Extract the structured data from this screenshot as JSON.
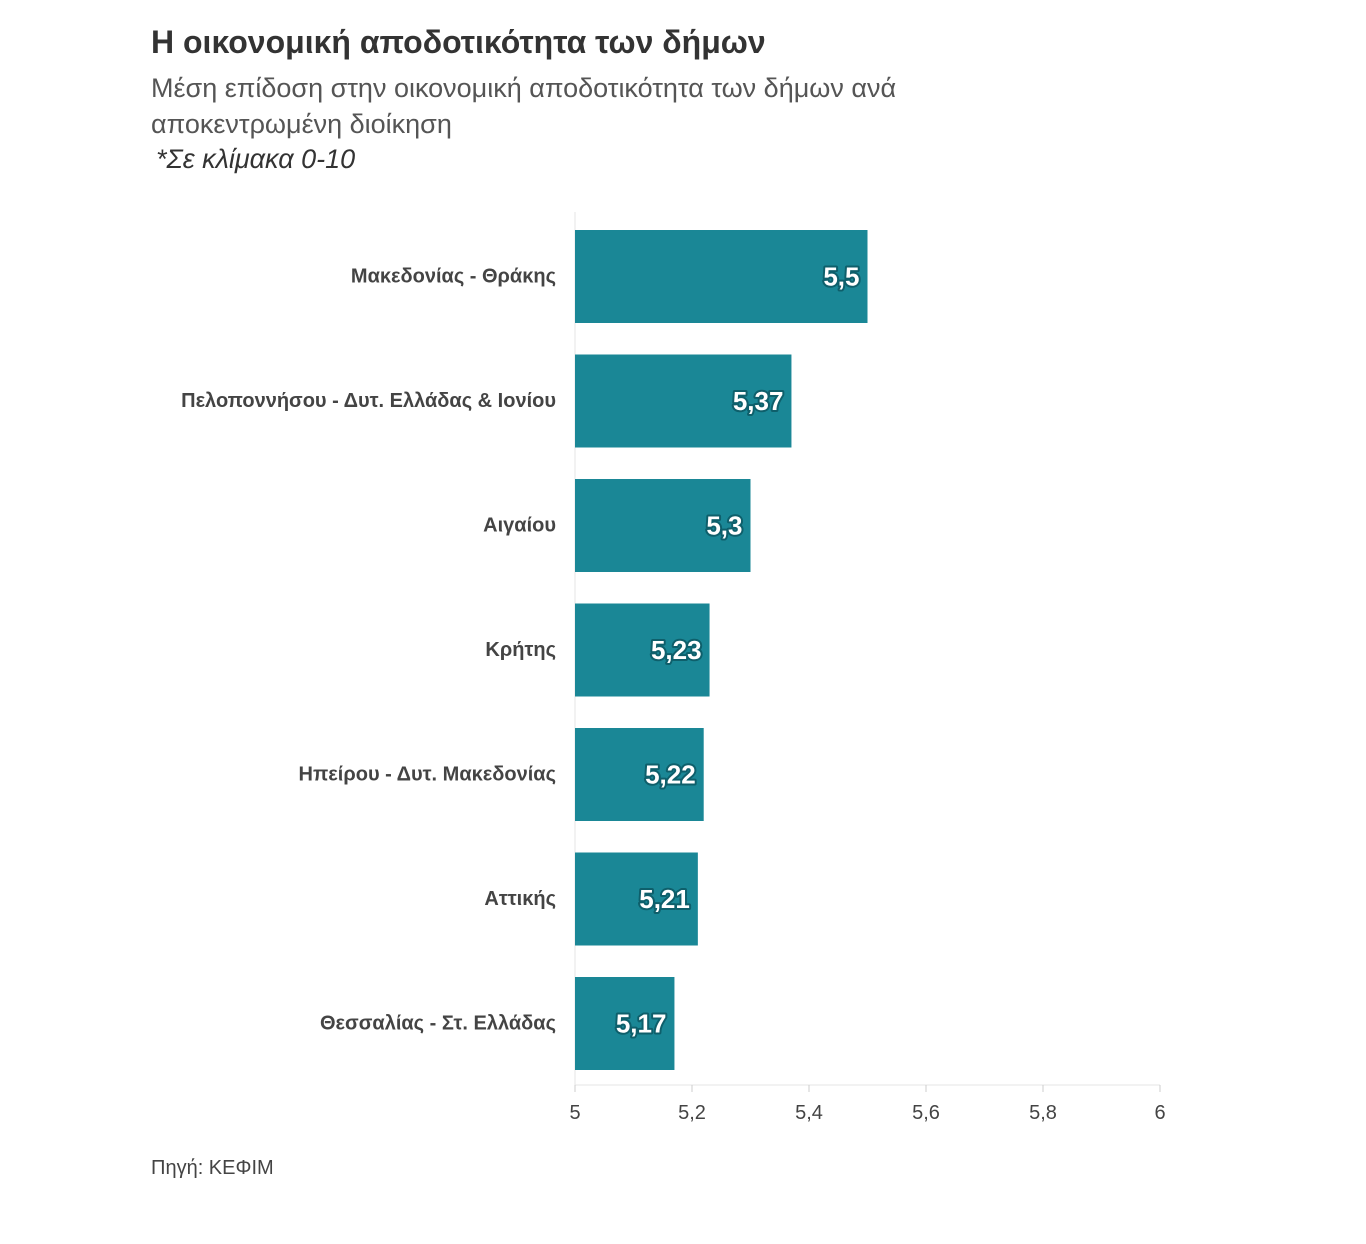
{
  "chart_data": {
    "type": "bar",
    "orientation": "horizontal",
    "title": "Η οικονομική αποδοτικότητα των δήμων",
    "subtitle": "Μέση επίδοση στην οικονομική αποδοτικότητα των δήμων ανά αποκεντρωμένη διοίκηση",
    "note": "*Σε κλίμακα 0-10",
    "source": "Πηγή: ΚΕΦΙΜ",
    "categories": [
      "Μακεδονίας - Θράκης",
      "Πελοποννήσου - Δυτ. Ελλάδας & Ιονίου",
      "Αιγαίου",
      "Κρήτης",
      "Ηπείρου - Δυτ. Μακεδονίας",
      "Αττικής",
      "Θεσσαλίας - Στ. Ελλάδας"
    ],
    "values": [
      5.5,
      5.37,
      5.3,
      5.23,
      5.22,
      5.21,
      5.17
    ],
    "value_labels": [
      "5,5",
      "5,37",
      "5,3",
      "5,23",
      "5,22",
      "5,21",
      "5,17"
    ],
    "xlim": [
      5,
      6
    ],
    "xticks": [
      5,
      5.2,
      5.4,
      5.6,
      5.8,
      6
    ],
    "xtick_labels": [
      "5",
      "5,2",
      "5,4",
      "5,6",
      "5,8",
      "6"
    ],
    "xlabel": "",
    "ylabel": "",
    "grid": false,
    "legend": "none",
    "bar_color": "#1a8796",
    "label_outline_color": "#0e5f6b"
  }
}
